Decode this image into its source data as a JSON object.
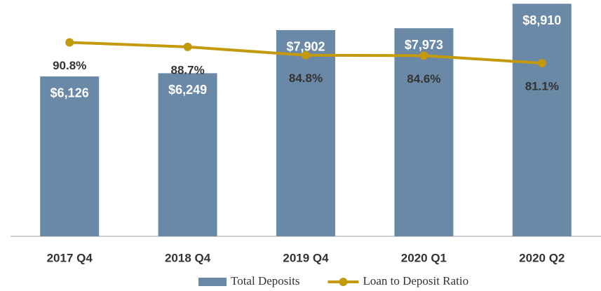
{
  "chart_data": {
    "type": "bar",
    "categories": [
      "2017 Q4",
      "2018 Q4",
      "2019 Q4",
      "2020 Q1",
      "2020 Q2"
    ],
    "series": [
      {
        "name": "Total Deposits",
        "type": "bar",
        "color": "#6a89a7",
        "values": [
          6126,
          6249,
          7902,
          7973,
          8910
        ],
        "value_labels": [
          "$6,126",
          "$6,249",
          "$7,902",
          "$7,973",
          "$8,910"
        ]
      },
      {
        "name": "Loan to Deposit Ratio",
        "type": "line",
        "axis": "y2",
        "color": "#c39a0c",
        "values": [
          90.8,
          88.7,
          84.8,
          84.6,
          81.1
        ],
        "value_labels": [
          "90.8%",
          "88.7%",
          "84.8%",
          "84.6%",
          "81.1%"
        ]
      }
    ],
    "ylim": [
      0,
      9000
    ],
    "y2lim": [
      0,
      110
    ],
    "legend": "bottom"
  }
}
